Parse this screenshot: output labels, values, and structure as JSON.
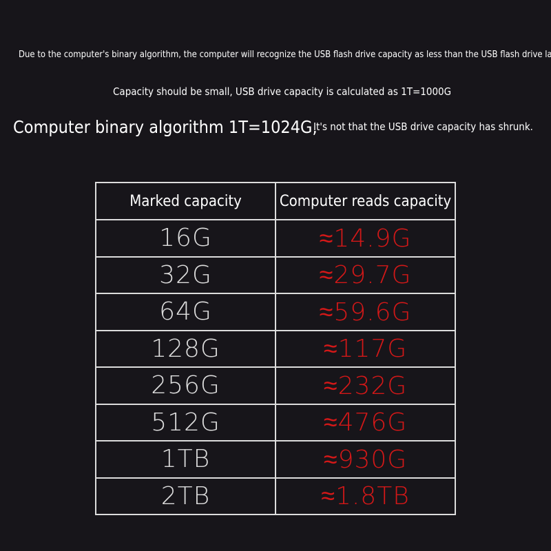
{
  "header": {
    "line1": "Due to the computer's binary algorithm, the computer will recognize the USB flash drive capacity as less than the USB flash drive labe",
    "line2": "Capacity should be small, USB drive capacity is calculated as 1T=1000G",
    "line3a": "Computer binary algorithm 1T=1024G,",
    "line3b": "It's not that the USB drive capacity has shrunk."
  },
  "table": {
    "headers": [
      "Marked capacity",
      "Computer reads capacity"
    ],
    "rows": [
      [
        "16G",
        "≈14.9G"
      ],
      [
        "32G",
        "≈29.7G"
      ],
      [
        "64G",
        "≈59.6G"
      ],
      [
        "128G",
        "≈117G"
      ],
      [
        "256G",
        "≈232G"
      ],
      [
        "512G",
        "≈476G"
      ],
      [
        "1TB",
        "≈930G"
      ],
      [
        "2TB",
        "≈1.8TB"
      ]
    ]
  }
}
